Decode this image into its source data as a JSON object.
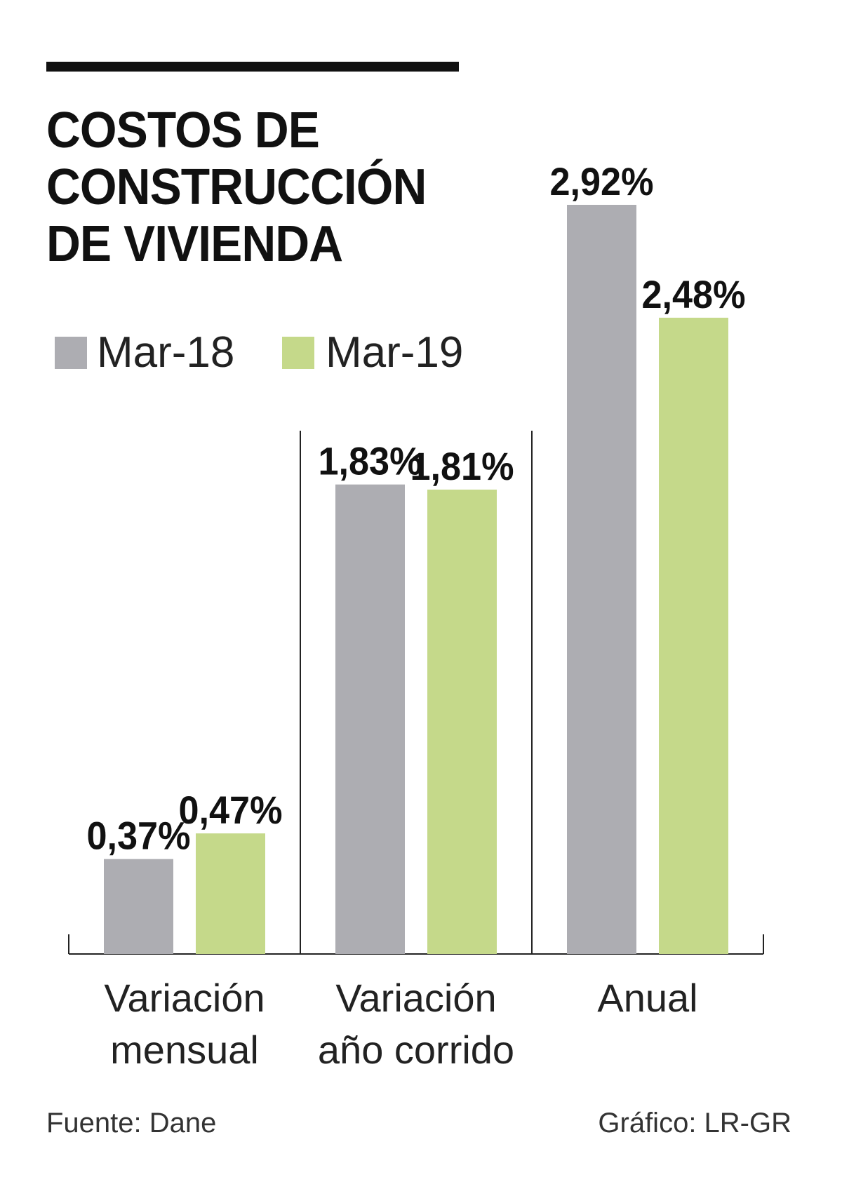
{
  "title_lines": [
    "COSTOS DE",
    "CONSTRUCCIÓN",
    "DE VIVIENDA"
  ],
  "legend": [
    {
      "label": "Mar-18",
      "color": "#adadb2"
    },
    {
      "label": "Mar-19",
      "color": "#c5d98a"
    }
  ],
  "chart_data": {
    "type": "bar",
    "title": "COSTOS DE CONSTRUCCIÓN DE VIVIENDA",
    "categories": [
      {
        "lines": [
          "Variación",
          "mensual"
        ]
      },
      {
        "lines": [
          "Variación",
          "año corrido"
        ]
      },
      {
        "lines": [
          "Anual"
        ]
      }
    ],
    "series": [
      {
        "name": "Mar-18",
        "color": "#adadb2",
        "values": [
          0.37,
          1.83,
          2.92
        ],
        "labels": [
          "0,37%",
          "1,83%",
          "2,92%"
        ]
      },
      {
        "name": "Mar-19",
        "color": "#c5d98a",
        "values": [
          0.47,
          1.81,
          2.48
        ],
        "labels": [
          "0,47%",
          "1,81%",
          "2,48%"
        ]
      }
    ],
    "unit": "%",
    "ylim": [
      0,
      2.92
    ],
    "grid": false,
    "legend_position": "top-left"
  },
  "footer": {
    "source": "Fuente: Dane",
    "credit": "Gráfico: LR-GR"
  }
}
